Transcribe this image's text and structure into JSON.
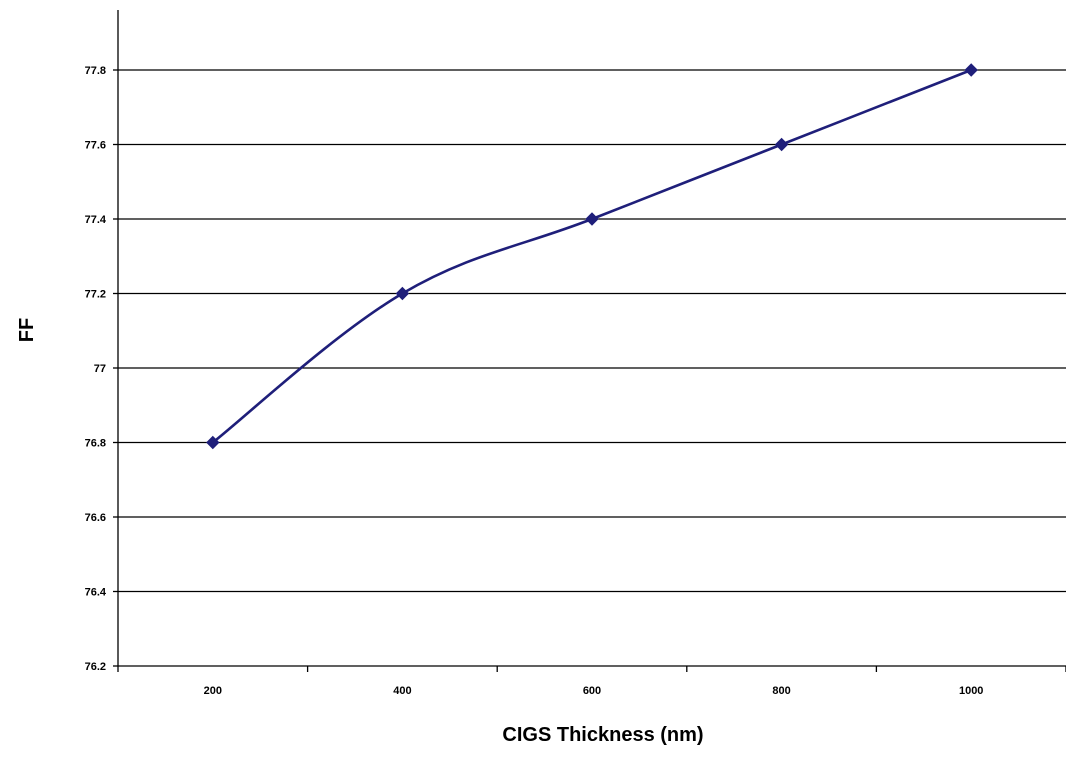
{
  "chart_data": {
    "type": "line",
    "title": "",
    "xlabel": "CIGS Thickness (nm)",
    "ylabel": "FF",
    "categories": [
      "200",
      "400",
      "600",
      "800",
      "1000"
    ],
    "series": [
      {
        "values": [
          76.8,
          77.2,
          77.4,
          77.6,
          77.8
        ],
        "color": "#1f1f7a",
        "marker": "diamond",
        "smooth": true
      }
    ],
    "ylim": [
      76.2,
      77.8
    ],
    "yticks": [
      "76.2",
      "76.4",
      "76.6",
      "76.8",
      "77",
      "77.2",
      "77.4",
      "77.6",
      "77.8"
    ],
    "grid": true,
    "legend": "none"
  }
}
